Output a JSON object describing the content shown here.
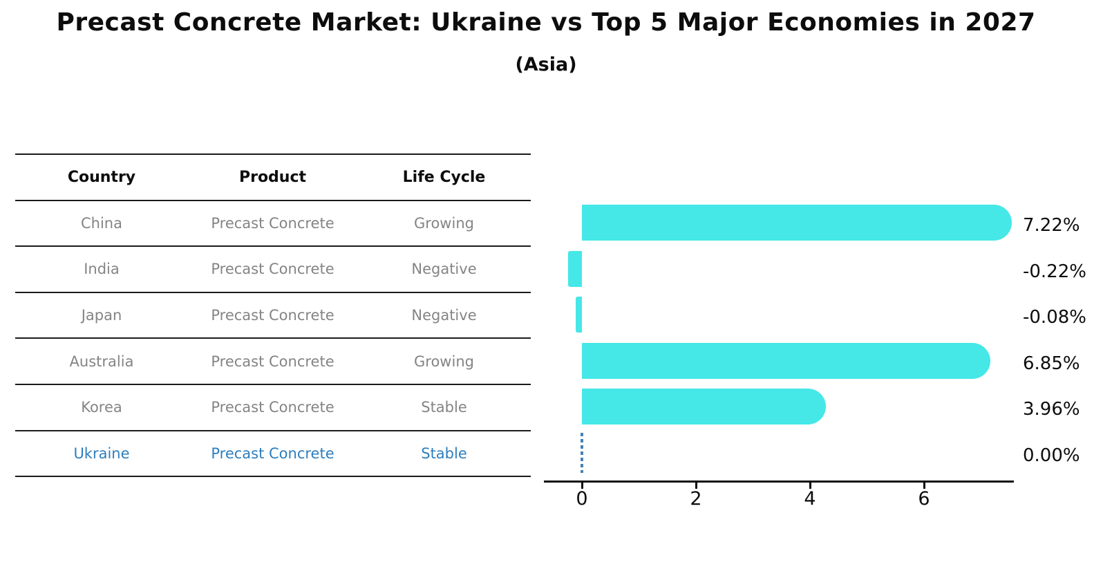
{
  "title": "Precast Concrete Market: Ukraine vs Top 5 Major Economies in 2027",
  "subtitle": "(Asia)",
  "table": {
    "headers": [
      "Country",
      "Product",
      "Life Cycle"
    ],
    "text_color": "#848484",
    "highlight_color": "#2e7ebd",
    "rows": [
      {
        "country": "China",
        "product": "Precast Concrete",
        "life_cycle": "Growing",
        "highlight": false
      },
      {
        "country": "India",
        "product": "Precast Concrete",
        "life_cycle": "Negative",
        "highlight": false
      },
      {
        "country": "Japan",
        "product": "Precast Concrete",
        "life_cycle": "Negative",
        "highlight": false
      },
      {
        "country": "Australia",
        "product": "Precast Concrete",
        "life_cycle": "Growing",
        "highlight": false
      },
      {
        "country": "Korea",
        "product": "Precast Concrete",
        "life_cycle": "Stable",
        "highlight": false
      },
      {
        "country": "Ukraine",
        "product": "Precast Concrete",
        "life_cycle": "Stable",
        "highlight": true
      }
    ]
  },
  "chart_data": {
    "type": "bar",
    "orientation": "horizontal",
    "title": "Precast Concrete Market: Ukraine vs Top 5 Major Economies in 2027 (Asia)",
    "categories": [
      "China",
      "India",
      "Japan",
      "Australia",
      "Korea",
      "Ukraine"
    ],
    "values": [
      7.22,
      -0.22,
      -0.08,
      6.85,
      3.96,
      0.0
    ],
    "value_labels": [
      "7.22%",
      "-0.22%",
      "-0.08%",
      "6.85%",
      "3.96%",
      "0.00%"
    ],
    "x_ticks": [
      0,
      2,
      4,
      6
    ],
    "xlim": [
      -0.67,
      7.58
    ],
    "grid": false,
    "legend": null,
    "bar_color": "#46e7e7",
    "zero_marker_color": "#4682b4",
    "label_color": "#0d0d0d"
  }
}
